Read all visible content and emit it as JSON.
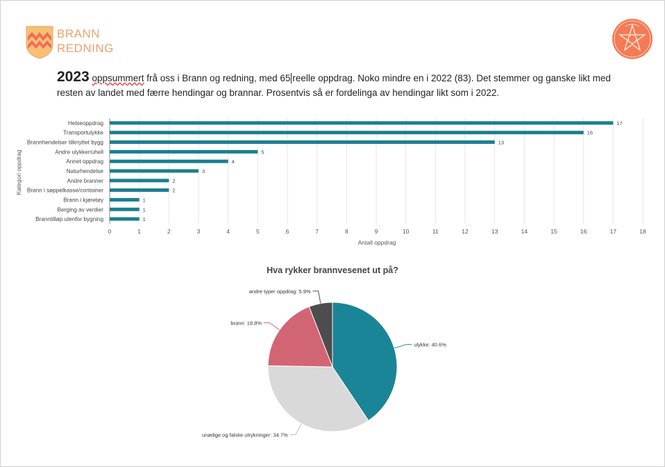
{
  "header": {
    "brand_line1": "BRANN",
    "brand_line2": "REDNING"
  },
  "intro": {
    "year": "2023",
    "word_underlined": "oppsummert",
    "text_part1": " frå oss i Brann og redning, med  65",
    "text_part2": "reelle oppdrag.  Noko mindre en i 2022 (83). Det stemmer og ganske likt med resten av landet med færre hendingar og brannar. Prosentvis så er fordelinga av hendingar likt som i 2022."
  },
  "colors": {
    "brand": "#f0a070",
    "bar": "#1a7f8e",
    "pie_ulykke": "#1a8597",
    "pie_falske": "#d9d9d9",
    "pie_brann": "#d26574",
    "pie_andre": "#4d4d4d"
  },
  "chart_data": [
    {
      "type": "bar",
      "orientation": "horizontal",
      "title": "",
      "xlabel": "Antall oppdrag",
      "ylabel": "Kategori oppdrag",
      "xlim": [
        0,
        18
      ],
      "xticks": [
        0,
        1,
        2,
        3,
        4,
        5,
        6,
        7,
        8,
        9,
        10,
        11,
        12,
        13,
        14,
        15,
        16,
        17,
        18
      ],
      "grid": true,
      "categories": [
        "Helseoppdrag",
        "Transportulykke",
        "Brannhendelser tilknyttet bygg",
        "Andre ulykker/uhell",
        "Annet oppdrag",
        "Naturhendelse",
        "Andre branner",
        "Brann i søppelkasse/container",
        "Brann i kjøretøy",
        "Berging av verdier",
        "Branntilløp utenfor bygning"
      ],
      "values": [
        17,
        16,
        13,
        5,
        4,
        3,
        2,
        2,
        1,
        1,
        1
      ]
    },
    {
      "type": "pie",
      "title": "Hva rykker brannvesenet ut på?",
      "slices": [
        {
          "label": "ulykke",
          "value": 40.6,
          "label_text": "ulykke: 40.6%"
        },
        {
          "label": "unødige og falske utrykninger",
          "value": 34.7,
          "label_text": "unødige og falske utrykninger: 34.7%"
        },
        {
          "label": "brann",
          "value": 18.8,
          "label_text": "brann: 18.8%"
        },
        {
          "label": "andre typer oppdrag",
          "value": 5.9,
          "label_text": "andre typer oppdrag: 5.9%"
        }
      ]
    }
  ]
}
